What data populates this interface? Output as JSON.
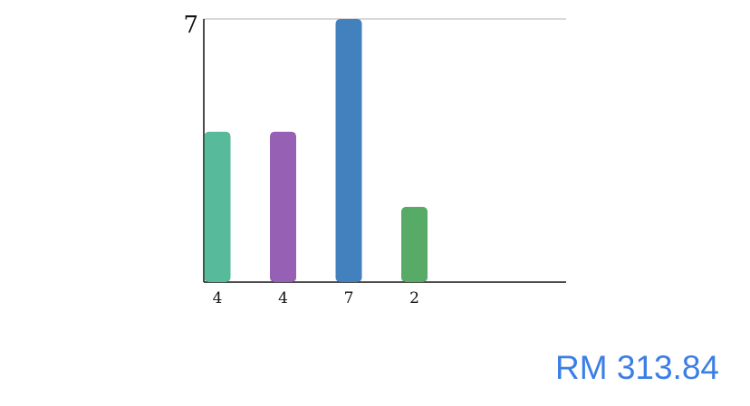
{
  "chart_data": {
    "type": "bar",
    "values": [
      4,
      4,
      7,
      2
    ],
    "data_labels": [
      "4",
      "4",
      "7",
      "2"
    ],
    "colors": [
      "#57ba9a",
      "#9660b5",
      "#4281bd",
      "#58aa67"
    ],
    "ylim": [
      0,
      7
    ],
    "y_max_label": "7",
    "grid": true,
    "axis_color": "#111111",
    "grid_color": "#cccccc"
  },
  "summary": {
    "total": "RM 313.84",
    "total_color": "#3b7ee6"
  }
}
